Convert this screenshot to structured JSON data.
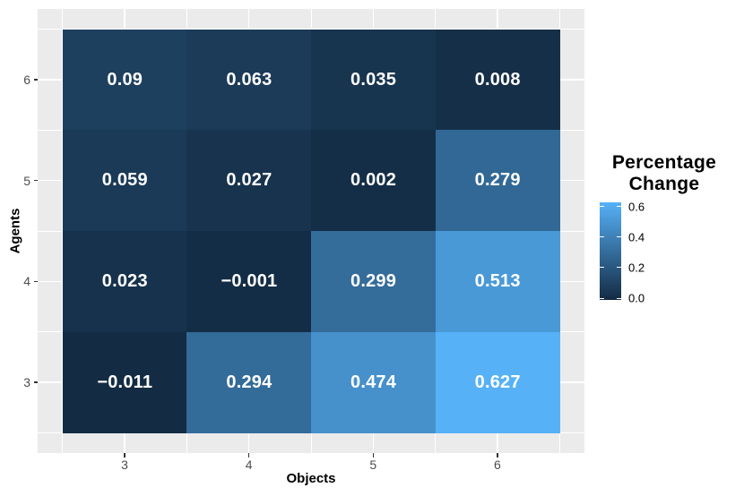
{
  "chart_data": {
    "type": "heatmap",
    "title": "",
    "xlabel": "Objects",
    "ylabel": "Agents",
    "x_categories": [
      "3",
      "4",
      "5",
      "6"
    ],
    "y_categories": [
      "6",
      "5",
      "4",
      "3"
    ],
    "rows": [
      {
        "agent": "6",
        "values": [
          0.09,
          0.063,
          0.035,
          0.008
        ],
        "labels": [
          "0.09",
          "0.063",
          "0.035",
          "0.008"
        ]
      },
      {
        "agent": "5",
        "values": [
          0.059,
          0.027,
          0.002,
          0.279
        ],
        "labels": [
          "0.059",
          "0.027",
          "0.002",
          "0.279"
        ]
      },
      {
        "agent": "4",
        "values": [
          0.023,
          -0.001,
          0.299,
          0.513
        ],
        "labels": [
          "0.023",
          "−0.001",
          "0.299",
          "0.513"
        ]
      },
      {
        "agent": "3",
        "values": [
          -0.011,
          0.294,
          0.474,
          0.627
        ],
        "labels": [
          "−0.011",
          "0.294",
          "0.474",
          "0.627"
        ]
      }
    ],
    "color_scale": {
      "low": "#132B43",
      "high": "#56B1F7",
      "domain": [
        -0.011,
        0.627
      ]
    },
    "legend": {
      "title": "Percentage\nChange",
      "ticks": [
        0.6,
        0.4,
        0.2,
        0.0
      ],
      "tick_labels": [
        "0.6",
        "0.4",
        "0.2",
        "0.0"
      ]
    },
    "style": {
      "panel_background": "#EBEBEB",
      "gridline_color": "#FFFFFF",
      "tick_mark_color": "#333333",
      "axis_text_color": "#4D4D4D",
      "axis_title_color": "#000000",
      "cell_text_color": "#FFFFFF"
    },
    "axis_ranges": {
      "x": [
        2.3,
        6.7
      ],
      "y": [
        2.3,
        6.7
      ]
    },
    "grid": true,
    "legend_position": "right"
  }
}
